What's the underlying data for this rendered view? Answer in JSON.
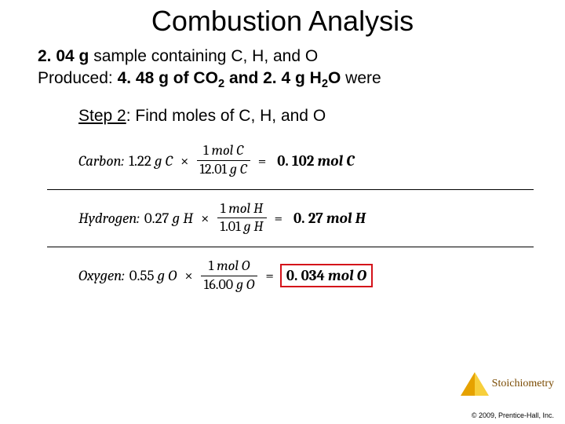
{
  "title": "Combustion Analysis",
  "given": {
    "line1_bold": "2. 04 g",
    "line1_rest": " sample containing C, H, and O",
    "line2_a": "Produced: ",
    "line2_b": "4. 48 g of CO",
    "line2_sub1": "2",
    "line2_c": " and 2. 4 g H",
    "line2_sub2": "2",
    "line2_d": "O",
    "line2_end": " were"
  },
  "step": {
    "label": "Step 2",
    "text": ": Find moles of C, H, and O"
  },
  "equations": [
    {
      "label": "Carbon",
      "given": "1.22",
      "given_unit_it": "g C",
      "num_a": "1 ",
      "num_it": "mol C",
      "den_a": "12.01 ",
      "den_it": "g C",
      "result_a": "0. 102 ",
      "result_it": "mol C",
      "rule": true,
      "boxed": false
    },
    {
      "label": "Hydrogen",
      "given": "0.27",
      "given_unit_it": "g H",
      "num_a": "1 ",
      "num_it": "mol H",
      "den_a": "1.01 ",
      "den_it": "g H",
      "result_a": "0. 27 ",
      "result_it": "mol H",
      "rule": true,
      "boxed": false
    },
    {
      "label": "Oxygen",
      "given": "0.55",
      "given_unit_it": "g O",
      "num_a": "1 ",
      "num_it": "mol O",
      "den_a": "16.00 ",
      "den_it": "g O",
      "result_a": "0. 034 ",
      "result_it": "mol O",
      "rule": false,
      "boxed": true
    }
  ],
  "styling": {
    "title_fontsize": 36,
    "body_fontsize": 21,
    "eq_fontsize": 19,
    "box_color": "#d4121a",
    "rule_color": "#000000",
    "background": "#ffffff",
    "pyramid_colors": [
      "#e6a200",
      "#f7cf3c"
    ],
    "topic_color": "#7a4a00"
  },
  "footer": {
    "topic": "Stoichiometry",
    "copyright": "© 2009, Prentice-Hall, Inc."
  }
}
